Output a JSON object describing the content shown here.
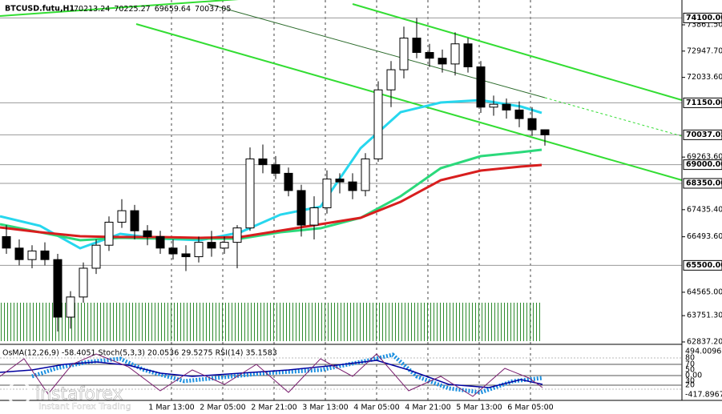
{
  "chart_data": {
    "type": "candlestick",
    "title": "BTCUSD.futu,H1",
    "ohlc": [
      "70213.24",
      "70225.27",
      "69659.64",
      "70037.05"
    ],
    "x": [
      2,
      6,
      10,
      14,
      18,
      22,
      26,
      30,
      34,
      38,
      42,
      46,
      50,
      54,
      58,
      62,
      66,
      70,
      74,
      78,
      82,
      86,
      90,
      94,
      98,
      102,
      106,
      110,
      114,
      118,
      122,
      126,
      130,
      134,
      138,
      142,
      146,
      150,
      154,
      158,
      162,
      166,
      170
    ],
    "open": [
      66500,
      66100,
      65700,
      66000,
      65700,
      63700,
      64400,
      65400,
      66200,
      67000,
      67400,
      66700,
      66500,
      66100,
      65900,
      65800,
      66300,
      66100,
      66300,
      66800,
      69200,
      69000,
      68700,
      68100,
      66900,
      67500,
      68500,
      68400,
      68100,
      69200,
      71600,
      72300,
      73400,
      72900,
      72700,
      72500,
      73200,
      72400,
      71000,
      71100,
      70900,
      70600,
      70213.24
    ],
    "high": [
      66900,
      66400,
      66200,
      66300,
      65900,
      64600,
      65600,
      66400,
      67200,
      67800,
      67600,
      66900,
      66700,
      66400,
      66200,
      66500,
      66700,
      66500,
      66900,
      69600,
      69700,
      69300,
      68900,
      68300,
      67900,
      68800,
      68700,
      68700,
      69400,
      71900,
      72600,
      73800,
      74100,
      73200,
      73000,
      73600,
      73400,
      72600,
      71400,
      71300,
      71200,
      71000,
      70225.27
    ],
    "low": [
      65900,
      65500,
      65400,
      65500,
      63200,
      63300,
      64200,
      65200,
      66000,
      66800,
      66400,
      66200,
      65900,
      65700,
      65300,
      65600,
      65800,
      65900,
      65400,
      66700,
      68700,
      68500,
      67900,
      66500,
      66400,
      67300,
      68000,
      67800,
      67900,
      69100,
      71000,
      72000,
      72700,
      72400,
      72200,
      72100,
      72200,
      70800,
      70700,
      70600,
      70300,
      70000,
      69659.64
    ],
    "close": [
      66100,
      65700,
      66000,
      65700,
      63700,
      64400,
      65400,
      66200,
      67000,
      67400,
      66700,
      66500,
      66100,
      65900,
      65800,
      66300,
      66100,
      66300,
      66800,
      69200,
      69000,
      68700,
      68100,
      66900,
      67500,
      68500,
      68400,
      68100,
      69200,
      71600,
      72300,
      73400,
      72900,
      72700,
      72500,
      73200,
      72400,
      71000,
      71100,
      70900,
      70600,
      70213.24,
      70037.05
    ],
    "series": [
      {
        "color": "#27d7ee",
        "x": [
          0,
          12.5,
          25,
          37.5,
          50,
          62.5,
          75,
          87.5,
          100,
          112.5,
          125,
          137.5,
          150,
          162.5,
          169
        ],
        "values": [
          67207,
          66873,
          66094,
          66595,
          66428,
          66372,
          66650,
          67263,
          67541,
          69574,
          70826,
          71160,
          71244,
          71021,
          70800
        ]
      },
      {
        "color": "#2bd97b",
        "x": [
          0,
          12.5,
          25,
          37.5,
          50,
          62.5,
          75,
          87.5,
          100,
          112.5,
          125,
          137.5,
          150,
          162.5,
          169
        ],
        "values": [
          66929,
          66650,
          66372,
          66456,
          66428,
          66428,
          66428,
          66650,
          66790,
          67152,
          67903,
          68878,
          69295,
          69435,
          69518
        ]
      },
      {
        "color": "#d81e1e",
        "x": [
          0,
          12.5,
          25,
          37.5,
          50,
          62.5,
          75,
          87.5,
          100,
          112.5,
          125,
          137.5,
          150,
          162.5,
          169
        ],
        "values": [
          66818,
          66650,
          66511,
          66483,
          66483,
          66456,
          66483,
          66706,
          66929,
          67152,
          67709,
          68460,
          68794,
          68933,
          68989
        ]
      }
    ],
    "ylim": [
      62754,
      74724
    ],
    "yticks": [
      {
        "value": 73861.5,
        "label": "73861.50"
      },
      {
        "value": 72947.7,
        "label": "72947.70"
      },
      {
        "value": 72033.6,
        "label": "72033.60"
      },
      {
        "value": 69263.6,
        "label": "69263.60"
      },
      {
        "value": 67435.4,
        "label": "67435.40"
      },
      {
        "value": 66493.6,
        "label": "66493.60"
      },
      {
        "value": 64565,
        "label": "64565.00"
      },
      {
        "value": 63751.3,
        "label": "63751.30"
      },
      {
        "value": 62837.2,
        "label": "62837.20"
      }
    ],
    "levels": [
      {
        "value": 74100,
        "label": "74100.00"
      },
      {
        "value": 71150,
        "label": "71150.00"
      },
      {
        "value": 70037.05,
        "label": "70037.05"
      },
      {
        "value": 69000,
        "label": "69000.00"
      },
      {
        "value": 68350,
        "label": "68350.00"
      },
      {
        "value": 65500,
        "label": "65500.00"
      }
    ],
    "xlim": [
      0,
      212.75
    ],
    "xticks": [
      {
        "value": 53.5,
        "label": "1 Mar 13:00"
      },
      {
        "value": 69.5,
        "label": "2 Mar 05:00"
      },
      {
        "value": 85.5,
        "label": "2 Mar 21:00"
      },
      {
        "value": 101.5,
        "label": "3 Mar 13:00"
      },
      {
        "value": 117.5,
        "label": "4 Mar 05:00"
      },
      {
        "value": 133.5,
        "label": "4 Mar 21:00"
      },
      {
        "value": 149.5,
        "label": "5 Mar 13:00"
      },
      {
        "value": 165.5,
        "label": "6 Mar 05:00"
      }
    ],
    "grid": true,
    "indicator_label": "OsMA(12,26,9) -58.4051  Stoch(5,3,3) 20.0536 29.5275  RSI(14) 35.1583",
    "indicator_ticks": [
      "494.0096",
      "80",
      "70",
      "50",
      "0.00",
      "30",
      "20",
      "-417.8967"
    ],
    "brand": "instaforex",
    "brand_sub": "Instant Forex Trading"
  }
}
